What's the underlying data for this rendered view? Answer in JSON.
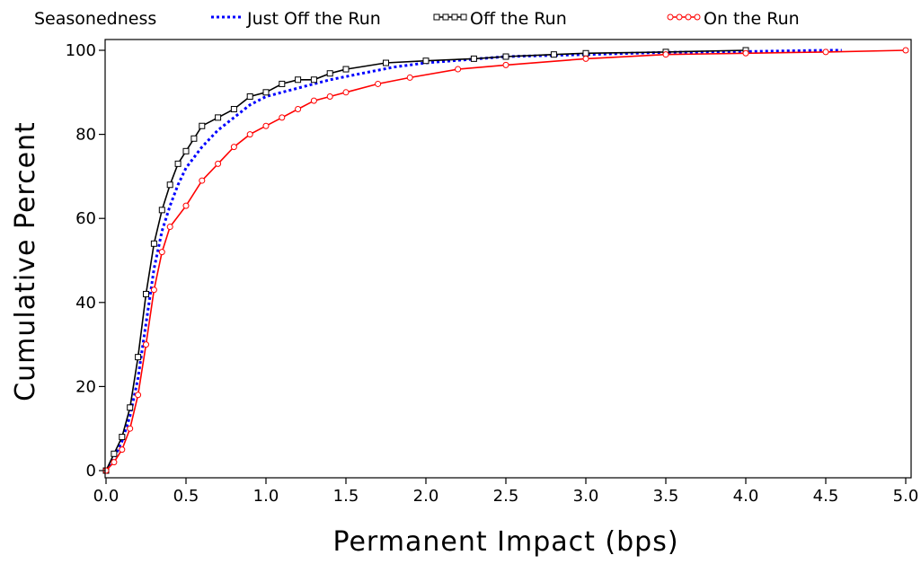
{
  "chart_data": {
    "type": "line",
    "legend": {
      "title": "Seasonedness",
      "placement": "top"
    },
    "xlabel": "Permanent Impact (bps)",
    "ylabel": "Cumulative Percent",
    "xlim": [
      0,
      5.0
    ],
    "ylim": [
      0,
      100
    ],
    "x_ticks": [
      "0.0",
      "0.5",
      "1.0",
      "1.5",
      "2.0",
      "2.5",
      "3.0",
      "3.5",
      "4.0",
      "4.5",
      "5.0"
    ],
    "y_ticks": [
      "0",
      "20",
      "40",
      "60",
      "80",
      "100"
    ],
    "grid": false,
    "series": [
      {
        "name": "Just Off the Run",
        "color": "#0000ff",
        "line_style": "dotted",
        "marker": "none",
        "points": [
          [
            0.0,
            0
          ],
          [
            0.05,
            3
          ],
          [
            0.1,
            7
          ],
          [
            0.15,
            13
          ],
          [
            0.2,
            22
          ],
          [
            0.25,
            35
          ],
          [
            0.3,
            48
          ],
          [
            0.35,
            57
          ],
          [
            0.4,
            63
          ],
          [
            0.45,
            68
          ],
          [
            0.5,
            72
          ],
          [
            0.6,
            77
          ],
          [
            0.7,
            81
          ],
          [
            0.8,
            84
          ],
          [
            0.9,
            87
          ],
          [
            1.0,
            89
          ],
          [
            1.2,
            91
          ],
          [
            1.4,
            93
          ],
          [
            1.6,
            94.5
          ],
          [
            1.8,
            96
          ],
          [
            2.0,
            97
          ],
          [
            2.5,
            98.5
          ],
          [
            3.0,
            99
          ],
          [
            3.5,
            99.5
          ],
          [
            4.0,
            99.7
          ],
          [
            4.5,
            100
          ],
          [
            4.6,
            100
          ]
        ]
      },
      {
        "name": "Off the Run",
        "color": "#000000",
        "line_style": "solid",
        "marker": "square",
        "points": [
          [
            0.0,
            0
          ],
          [
            0.05,
            4
          ],
          [
            0.1,
            8
          ],
          [
            0.15,
            15
          ],
          [
            0.2,
            27
          ],
          [
            0.25,
            42
          ],
          [
            0.3,
            54
          ],
          [
            0.35,
            62
          ],
          [
            0.4,
            68
          ],
          [
            0.45,
            73
          ],
          [
            0.5,
            76
          ],
          [
            0.55,
            79
          ],
          [
            0.6,
            82
          ],
          [
            0.7,
            84
          ],
          [
            0.8,
            86
          ],
          [
            0.9,
            89
          ],
          [
            1.0,
            90
          ],
          [
            1.1,
            92
          ],
          [
            1.2,
            93
          ],
          [
            1.3,
            93
          ],
          [
            1.4,
            94.5
          ],
          [
            1.5,
            95.5
          ],
          [
            1.75,
            97
          ],
          [
            2.0,
            97.5
          ],
          [
            2.3,
            98
          ],
          [
            2.5,
            98.5
          ],
          [
            2.8,
            99
          ],
          [
            3.0,
            99.3
          ],
          [
            3.5,
            99.6
          ],
          [
            4.0,
            100
          ]
        ]
      },
      {
        "name": "On the Run",
        "color": "#ff0000",
        "line_style": "solid",
        "marker": "circle",
        "points": [
          [
            0.0,
            0
          ],
          [
            0.05,
            2
          ],
          [
            0.1,
            5
          ],
          [
            0.15,
            10
          ],
          [
            0.2,
            18
          ],
          [
            0.25,
            30
          ],
          [
            0.3,
            43
          ],
          [
            0.35,
            52
          ],
          [
            0.4,
            58
          ],
          [
            0.5,
            63
          ],
          [
            0.6,
            69
          ],
          [
            0.7,
            73
          ],
          [
            0.8,
            77
          ],
          [
            0.9,
            80
          ],
          [
            1.0,
            82
          ],
          [
            1.1,
            84
          ],
          [
            1.2,
            86
          ],
          [
            1.3,
            88
          ],
          [
            1.4,
            89
          ],
          [
            1.5,
            90
          ],
          [
            1.7,
            92
          ],
          [
            1.9,
            93.5
          ],
          [
            2.2,
            95.5
          ],
          [
            2.5,
            96.5
          ],
          [
            3.0,
            98
          ],
          [
            3.5,
            99
          ],
          [
            4.0,
            99.3
          ],
          [
            4.5,
            99.6
          ],
          [
            5.0,
            100
          ]
        ]
      }
    ]
  }
}
